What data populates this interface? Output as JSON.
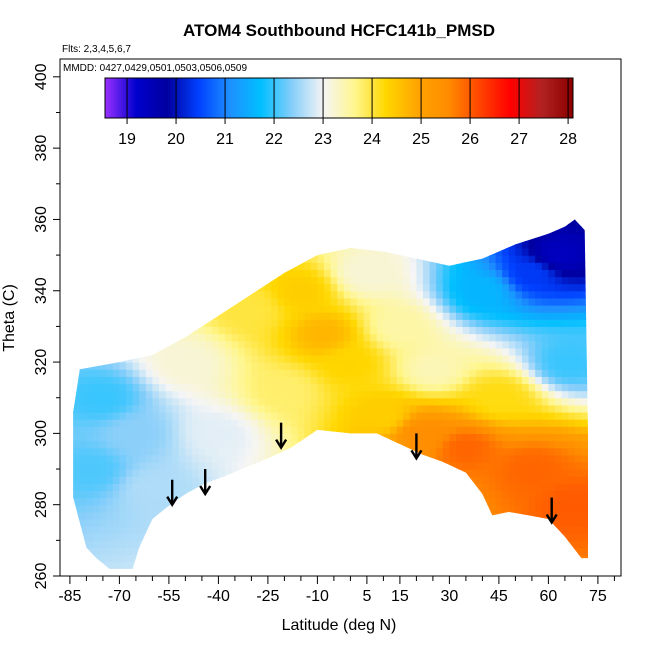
{
  "chart_data": {
    "type": "heatmap",
    "title": "ATOM4 Southbound HCFC141b_PMSD",
    "flights_label": "Flts: 2,3,4,5,6,7",
    "dates_label": "MMDD: 0427,0429,0501,0503,0506,0509",
    "xlabel": "Latitude (deg N)",
    "ylabel": "Theta (C)",
    "xlim": [
      -88,
      82
    ],
    "ylim": [
      260,
      405
    ],
    "x_ticks": [
      -85,
      -70,
      -55,
      -40,
      -25,
      -10,
      5,
      15,
      30,
      45,
      60,
      75
    ],
    "y_ticks": [
      260,
      280,
      300,
      320,
      340,
      360,
      380,
      400
    ],
    "colorbar": {
      "min": 18.55,
      "max": 28.1,
      "ticks": [
        19,
        20,
        21,
        22,
        23,
        24,
        25,
        26,
        27,
        28
      ],
      "colors": [
        "#9b30ff",
        "#0000cd",
        "#0000a0",
        "#0040ff",
        "#1e90ff",
        "#00bfff",
        "#87cefa",
        "#f5f5f5",
        "#fff68f",
        "#ffd700",
        "#ffa500",
        "#ff8c00",
        "#ff4500",
        "#ff0000",
        "#b22222",
        "#8b0000"
      ]
    },
    "data_lower_boundary": [
      [
        -84,
        282
      ],
      [
        -80,
        268
      ],
      [
        -77,
        265
      ],
      [
        -73,
        262
      ],
      [
        -70,
        262
      ],
      [
        -66,
        262
      ],
      [
        -64,
        268
      ],
      [
        -60,
        276
      ],
      [
        -56,
        279
      ],
      [
        -50,
        283
      ],
      [
        -44,
        286
      ],
      [
        -38,
        288
      ],
      [
        -33,
        290
      ],
      [
        -25,
        293
      ],
      [
        -18,
        296
      ],
      [
        -10,
        301
      ],
      [
        0,
        300
      ],
      [
        8,
        300
      ],
      [
        15,
        297
      ],
      [
        22,
        294
      ],
      [
        28,
        292
      ],
      [
        35,
        289
      ],
      [
        40,
        283
      ],
      [
        43,
        277
      ],
      [
        48,
        278
      ],
      [
        54,
        277
      ],
      [
        60,
        276
      ],
      [
        65,
        271
      ],
      [
        70,
        265
      ]
    ],
    "data_upper_boundary": [
      [
        -84,
        306
      ],
      [
        -82,
        318
      ],
      [
        -70,
        320
      ],
      [
        -60,
        322
      ],
      [
        -50,
        327
      ],
      [
        -40,
        333
      ],
      [
        -30,
        339
      ],
      [
        -20,
        345
      ],
      [
        -10,
        350
      ],
      [
        0,
        352
      ],
      [
        10,
        351
      ],
      [
        20,
        349
      ],
      [
        30,
        347
      ],
      [
        40,
        349
      ],
      [
        50,
        353
      ],
      [
        60,
        356
      ],
      [
        65,
        358
      ],
      [
        68,
        360
      ],
      [
        71,
        357
      ],
      [
        72,
        300
      ],
      [
        72,
        265
      ]
    ],
    "value_field_anchors": [
      {
        "lat": -78,
        "theta": 290,
        "value": 22.1
      },
      {
        "lat": -75,
        "theta": 310,
        "value": 22.0
      },
      {
        "lat": -65,
        "theta": 300,
        "value": 22.4
      },
      {
        "lat": -60,
        "theta": 285,
        "value": 22.6
      },
      {
        "lat": -50,
        "theta": 320,
        "value": 23.2
      },
      {
        "lat": -40,
        "theta": 300,
        "value": 22.9
      },
      {
        "lat": -30,
        "theta": 335,
        "value": 24.0
      },
      {
        "lat": -20,
        "theta": 312,
        "value": 23.8
      },
      {
        "lat": -15,
        "theta": 340,
        "value": 24.4
      },
      {
        "lat": -8,
        "theta": 328,
        "value": 24.7
      },
      {
        "lat": 0,
        "theta": 320,
        "value": 24.3
      },
      {
        "lat": 5,
        "theta": 345,
        "value": 23.2
      },
      {
        "lat": 10,
        "theta": 305,
        "value": 24.4
      },
      {
        "lat": 15,
        "theta": 330,
        "value": 23.5
      },
      {
        "lat": 22,
        "theta": 300,
        "value": 25.5
      },
      {
        "lat": 25,
        "theta": 318,
        "value": 23.4
      },
      {
        "lat": 35,
        "theta": 296,
        "value": 25.9
      },
      {
        "lat": 40,
        "theta": 340,
        "value": 21.6
      },
      {
        "lat": 45,
        "theta": 310,
        "value": 24.2
      },
      {
        "lat": 55,
        "theta": 290,
        "value": 25.9
      },
      {
        "lat": 55,
        "theta": 345,
        "value": 20.4
      },
      {
        "lat": 63,
        "theta": 350,
        "value": 19.4
      },
      {
        "lat": 66,
        "theta": 320,
        "value": 22.0
      },
      {
        "lat": 68,
        "theta": 280,
        "value": 26.0
      }
    ],
    "arrows": [
      {
        "lat": -54,
        "theta_top": 287,
        "theta_tip": 280
      },
      {
        "lat": -44,
        "theta_top": 290,
        "theta_tip": 283
      },
      {
        "lat": -21,
        "theta_top": 303,
        "theta_tip": 296
      },
      {
        "lat": 20,
        "theta_top": 300,
        "theta_tip": 293
      },
      {
        "lat": 61,
        "theta_top": 282,
        "theta_tip": 275
      }
    ]
  }
}
